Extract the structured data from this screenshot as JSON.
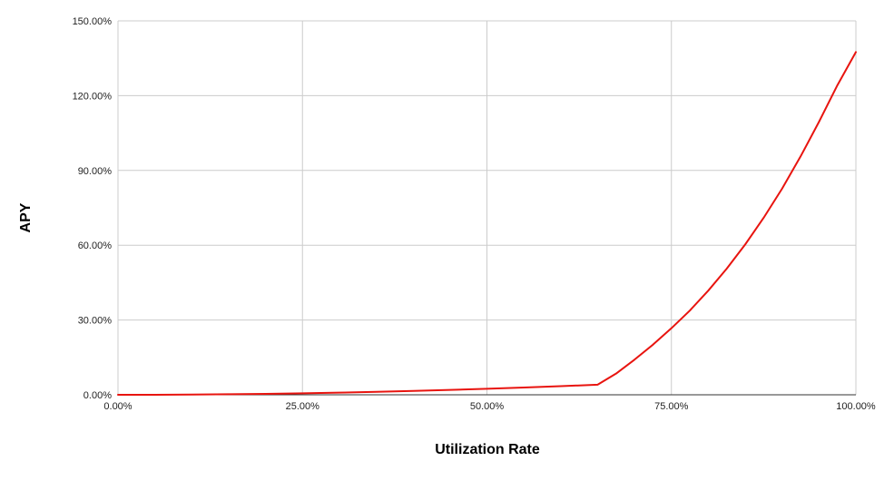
{
  "chart_data": {
    "type": "line",
    "title": "",
    "xlabel": "Utilization Rate",
    "ylabel": "APY",
    "xlim": [
      0,
      100
    ],
    "ylim": [
      0,
      150
    ],
    "x_ticks": [
      "0.00%",
      "25.00%",
      "50.00%",
      "75.00%",
      "100.00%"
    ],
    "y_ticks": [
      "0.00%",
      "30.00%",
      "60.00%",
      "90.00%",
      "120.00%",
      "150.00%"
    ],
    "x_tick_values": [
      0,
      25,
      50,
      75,
      100
    ],
    "y_tick_values": [
      0,
      30,
      60,
      90,
      120,
      150
    ],
    "grid": true,
    "series": [
      {
        "color": "#e8140f",
        "x": [
          0,
          5,
          10,
          15,
          20,
          25,
          30,
          35,
          40,
          45,
          50,
          55,
          60,
          65,
          67.5,
          70,
          72.5,
          75,
          77.5,
          80,
          82.5,
          85,
          87.5,
          90,
          92.5,
          95,
          97.5,
          100
        ],
        "y": [
          0,
          0.02,
          0.1,
          0.22,
          0.38,
          0.6,
          0.86,
          1.17,
          1.53,
          1.94,
          2.4,
          2.9,
          3.45,
          4.05,
          8.5,
          14.1,
          20.1,
          26.7,
          33.8,
          41.8,
          50.6,
          60.3,
          71.0,
          82.7,
          95.6,
          109.5,
          124.2,
          137.5
        ]
      }
    ]
  }
}
